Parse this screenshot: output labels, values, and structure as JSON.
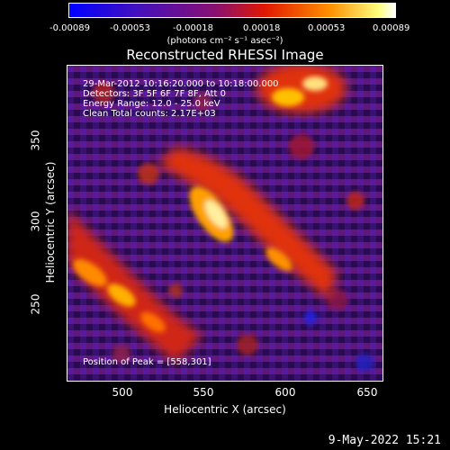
{
  "colorbar": {
    "labels": [
      "-0.00089",
      "-0.00053",
      "-0.00018",
      "0.00018",
      "0.00053",
      "0.00089"
    ],
    "units": "(photons cm⁻² s⁻¹ asec⁻²)"
  },
  "title": "Reconstructed RHESSI Image",
  "info": {
    "time": "29-Mar-2012 10:16:20.000 to 10:18:00.000",
    "detectors": "Detectors: 3F 5F 6F 7F 8F, Att 0",
    "energy": "Energy Range: 12.0 - 25.0 keV",
    "method": "Clean     Total counts: 2.17E+03",
    "peak": "Position of Peak = [558,301]"
  },
  "axes": {
    "x_ticks": [
      "500",
      "550",
      "600",
      "650"
    ],
    "y_ticks": [
      "350",
      "300",
      "250"
    ],
    "xlabel": "Heliocentric X (arcsec)",
    "ylabel": "Heliocentric Y (arcsec)"
  },
  "datestamp": "9-May-2022 15:21",
  "colors": {
    "background": "#000000",
    "low": "#1a1aff",
    "mid": "#6a1fa0",
    "high": "#ff3a00",
    "peak": "#ffffe0"
  }
}
